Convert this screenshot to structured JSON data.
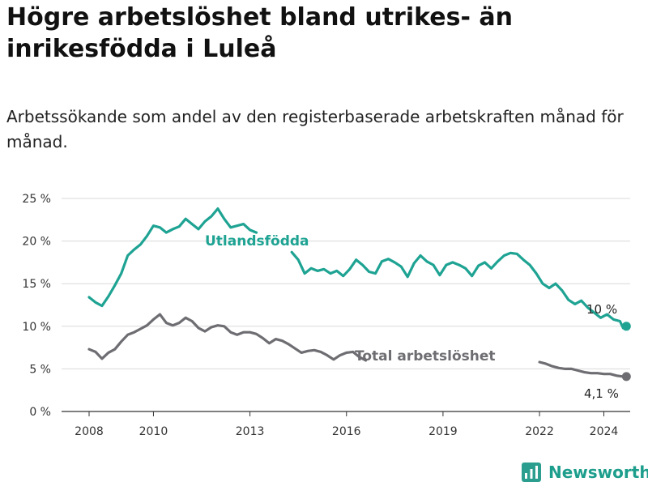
{
  "title": "Högre arbetslöshet bland utrikes- än inrikesfödda i Luleå",
  "subtitle": "Arbetssökande som andel av den registerbaserade arbetskraften månad för månad.",
  "brand": {
    "name": "Newsworthy",
    "logo_icon": "newsworthy-bar-chart-logo-icon",
    "color": "#2b9e8f"
  },
  "chart_data": {
    "type": "line",
    "xlim": [
      2008,
      2026.0
    ],
    "ylim": [
      0,
      25
    ],
    "x_ticks": [
      2008,
      2010,
      2013,
      2016,
      2019,
      2022,
      2024
    ],
    "y_ticks": [
      {
        "value": 0,
        "label": "0 %"
      },
      {
        "value": 5,
        "label": "5 %"
      },
      {
        "value": 10,
        "label": "10 %"
      },
      {
        "value": 15,
        "label": "15 %"
      },
      {
        "value": 20,
        "label": "20 %"
      },
      {
        "value": 25,
        "label": "25 %"
      }
    ],
    "grid": true,
    "series": [
      {
        "name": "Utlandsfödda",
        "color": "#1ea393",
        "end_label": "10 %",
        "points": [
          [
            2008.0,
            13.4
          ],
          [
            2008.2,
            12.8
          ],
          [
            2008.4,
            12.4
          ],
          [
            2008.6,
            13.5
          ],
          [
            2008.8,
            14.8
          ],
          [
            2009.0,
            16.2
          ],
          [
            2009.2,
            18.3
          ],
          [
            2009.4,
            19.0
          ],
          [
            2009.6,
            19.6
          ],
          [
            2009.8,
            20.6
          ],
          [
            2010.0,
            21.8
          ],
          [
            2010.2,
            21.6
          ],
          [
            2010.4,
            21.0
          ],
          [
            2010.6,
            21.4
          ],
          [
            2010.8,
            21.7
          ],
          [
            2011.0,
            22.6
          ],
          [
            2011.2,
            22.0
          ],
          [
            2011.4,
            21.4
          ],
          [
            2011.6,
            22.3
          ],
          [
            2011.8,
            22.9
          ],
          [
            2012.0,
            23.8
          ],
          [
            2012.2,
            22.6
          ],
          [
            2012.4,
            21.6
          ],
          [
            2012.6,
            21.8
          ],
          [
            2012.8,
            22.0
          ],
          [
            2013.0,
            21.3
          ],
          [
            2013.2,
            21.0
          ],
          [
            2014.3,
            18.7
          ],
          [
            2014.5,
            17.8
          ],
          [
            2014.7,
            16.2
          ],
          [
            2014.9,
            16.8
          ],
          [
            2015.1,
            16.5
          ],
          [
            2015.3,
            16.7
          ],
          [
            2015.5,
            16.2
          ],
          [
            2015.7,
            16.5
          ],
          [
            2015.9,
            15.9
          ],
          [
            2016.1,
            16.7
          ],
          [
            2016.3,
            17.8
          ],
          [
            2016.5,
            17.2
          ],
          [
            2016.7,
            16.4
          ],
          [
            2016.9,
            16.2
          ],
          [
            2017.1,
            17.6
          ],
          [
            2017.3,
            17.9
          ],
          [
            2017.5,
            17.5
          ],
          [
            2017.7,
            17.0
          ],
          [
            2017.9,
            15.8
          ],
          [
            2018.1,
            17.4
          ],
          [
            2018.3,
            18.3
          ],
          [
            2018.5,
            17.6
          ],
          [
            2018.7,
            17.2
          ],
          [
            2018.9,
            16.0
          ],
          [
            2019.1,
            17.2
          ],
          [
            2019.3,
            17.5
          ],
          [
            2019.5,
            17.2
          ],
          [
            2019.7,
            16.8
          ],
          [
            2019.9,
            15.9
          ],
          [
            2020.1,
            17.1
          ],
          [
            2020.3,
            17.5
          ],
          [
            2020.5,
            16.8
          ],
          [
            2020.7,
            17.6
          ],
          [
            2020.9,
            18.3
          ],
          [
            2021.1,
            18.6
          ],
          [
            2021.3,
            18.5
          ],
          [
            2021.5,
            17.8
          ],
          [
            2021.7,
            17.2
          ],
          [
            2021.9,
            16.2
          ],
          [
            2022.1,
            15.0
          ],
          [
            2022.3,
            14.5
          ],
          [
            2022.5,
            15.0
          ],
          [
            2022.7,
            14.2
          ],
          [
            2022.9,
            13.1
          ],
          [
            2023.1,
            12.6
          ],
          [
            2023.3,
            13.0
          ],
          [
            2023.5,
            12.2
          ],
          [
            2023.7,
            11.6
          ],
          [
            2023.9,
            11.0
          ],
          [
            2024.1,
            11.4
          ],
          [
            2024.3,
            10.8
          ],
          [
            2024.5,
            10.6
          ],
          [
            2024.6,
            9.8
          ],
          [
            2024.7,
            10.0
          ]
        ]
      },
      {
        "name": "Total arbetslöshet",
        "color": "#6e6d72",
        "end_label": "4,1 %",
        "points": [
          [
            2008.0,
            7.3
          ],
          [
            2008.2,
            7.0
          ],
          [
            2008.4,
            6.2
          ],
          [
            2008.6,
            6.9
          ],
          [
            2008.8,
            7.3
          ],
          [
            2009.0,
            8.2
          ],
          [
            2009.2,
            9.0
          ],
          [
            2009.4,
            9.3
          ],
          [
            2009.6,
            9.7
          ],
          [
            2009.8,
            10.1
          ],
          [
            2010.0,
            10.8
          ],
          [
            2010.2,
            11.4
          ],
          [
            2010.4,
            10.4
          ],
          [
            2010.6,
            10.1
          ],
          [
            2010.8,
            10.4
          ],
          [
            2011.0,
            11.0
          ],
          [
            2011.2,
            10.6
          ],
          [
            2011.4,
            9.8
          ],
          [
            2011.6,
            9.4
          ],
          [
            2011.8,
            9.9
          ],
          [
            2012.0,
            10.1
          ],
          [
            2012.2,
            10.0
          ],
          [
            2012.4,
            9.3
          ],
          [
            2012.6,
            9.0
          ],
          [
            2012.8,
            9.3
          ],
          [
            2013.0,
            9.3
          ],
          [
            2013.2,
            9.1
          ],
          [
            2013.4,
            8.6
          ],
          [
            2013.6,
            8.0
          ],
          [
            2013.8,
            8.5
          ],
          [
            2014.0,
            8.3
          ],
          [
            2014.2,
            7.9
          ],
          [
            2014.4,
            7.4
          ],
          [
            2014.6,
            6.9
          ],
          [
            2014.8,
            7.1
          ],
          [
            2015.0,
            7.2
          ],
          [
            2015.2,
            7.0
          ],
          [
            2015.4,
            6.6
          ],
          [
            2015.6,
            6.1
          ],
          [
            2015.8,
            6.6
          ],
          [
            2016.0,
            6.9
          ],
          [
            2016.2,
            7.0
          ],
          [
            2016.4,
            6.4
          ],
          [
            2016.6,
            6.0
          ],
          [
            2022.0,
            5.8
          ],
          [
            2022.2,
            5.6
          ],
          [
            2022.4,
            5.3
          ],
          [
            2022.6,
            5.1
          ],
          [
            2022.8,
            5.0
          ],
          [
            2023.0,
            5.0
          ],
          [
            2023.2,
            4.8
          ],
          [
            2023.4,
            4.6
          ],
          [
            2023.6,
            4.5
          ],
          [
            2023.8,
            4.5
          ],
          [
            2024.0,
            4.4
          ],
          [
            2024.2,
            4.4
          ],
          [
            2024.4,
            4.2
          ],
          [
            2024.6,
            4.1
          ],
          [
            2024.7,
            4.1
          ]
        ]
      }
    ]
  }
}
